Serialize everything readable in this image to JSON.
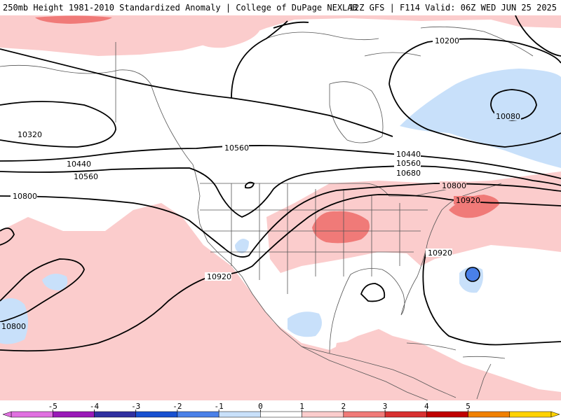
{
  "header": {
    "title_left": "250mb Height 1981-2010 Standardized Anomaly | College of DuPage NEXLAB",
    "title_right": "12Z GFS | F114 Valid: 06Z WED JUN 25 2025"
  },
  "contour_labels": [
    {
      "id": "c10200",
      "text": "10200"
    },
    {
      "id": "c10080",
      "text": "10080"
    },
    {
      "id": "c10320",
      "text": "10320"
    },
    {
      "id": "c10440a",
      "text": "10440"
    },
    {
      "id": "c10560a",
      "text": "10560"
    },
    {
      "id": "c10560b",
      "text": "10560"
    },
    {
      "id": "c10440b",
      "text": "10440"
    },
    {
      "id": "c10560c",
      "text": "10560"
    },
    {
      "id": "c10680",
      "text": "10680"
    },
    {
      "id": "c10800a",
      "text": "10800"
    },
    {
      "id": "c10800b",
      "text": "10800"
    },
    {
      "id": "c10920a",
      "text": "10920"
    },
    {
      "id": "c10920b",
      "text": "10920"
    },
    {
      "id": "c10920c",
      "text": "10920"
    },
    {
      "id": "c10800c",
      "text": "10800"
    }
  ],
  "legend": {
    "ticks": [
      "-5",
      "-4",
      "-3",
      "-2",
      "-1",
      "0",
      "1",
      "2",
      "3",
      "4",
      "5"
    ],
    "colors": [
      "#e070e0",
      "#9a1ab8",
      "#3030a0",
      "#1850d0",
      "#4a80e8",
      "#c8e0fa",
      "#ffffff",
      "#fbcccc",
      "#f07a78",
      "#d83030",
      "#c00000",
      "#f08000",
      "#ffd200"
    ]
  }
}
